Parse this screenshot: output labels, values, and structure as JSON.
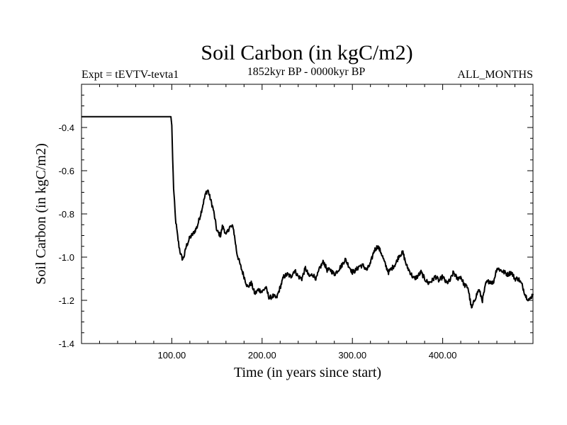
{
  "chart_data": {
    "type": "line",
    "title": "Soil Carbon (in kgC/m2)",
    "left_label": "Expt = tEVTV-tevta1",
    "center_label": "1852kyr BP - 0000kyr BP",
    "right_label": "ALL_MONTHS",
    "xlabel": "Time (in years since start)",
    "ylabel": "Soil Carbon (in kgC/m2)",
    "xlim": [
      0,
      500
    ],
    "ylim": [
      -1.4,
      -0.2
    ],
    "xticks": [
      100,
      200,
      300,
      400
    ],
    "xtick_labels": [
      "100.00",
      "200.00",
      "300.00",
      "400.00"
    ],
    "yticks": [
      -1.4,
      -1.2,
      -1.0,
      -0.8,
      -0.6,
      -0.4
    ],
    "ytick_labels": [
      "-1.4",
      "-1.2",
      "-1.0",
      "-0.8",
      "-0.6",
      "-0.4"
    ],
    "series": [
      {
        "name": "Soil Carbon",
        "color": "#000000",
        "x": [
          0,
          50,
          99,
          100,
          101,
          102,
          104,
          106,
          108,
          110,
          112,
          114,
          116,
          120,
          124,
          128,
          132,
          136,
          138,
          140,
          142,
          146,
          150,
          154,
          156,
          158,
          160,
          164,
          168,
          172,
          176,
          180,
          184,
          188,
          192,
          196,
          200,
          204,
          208,
          212,
          216,
          220,
          224,
          228,
          232,
          236,
          240,
          244,
          248,
          252,
          256,
          260,
          264,
          268,
          272,
          276,
          280,
          284,
          288,
          292,
          296,
          300,
          304,
          308,
          312,
          316,
          320,
          324,
          328,
          332,
          336,
          340,
          344,
          348,
          352,
          356,
          360,
          364,
          368,
          372,
          376,
          380,
          384,
          388,
          392,
          396,
          400,
          404,
          408,
          412,
          416,
          420,
          424,
          428,
          432,
          436,
          440,
          444,
          448,
          452,
          456,
          460,
          464,
          468,
          472,
          476,
          480,
          484,
          488,
          492,
          496,
          500
        ],
        "values": [
          -0.35,
          -0.35,
          -0.35,
          -0.39,
          -0.55,
          -0.68,
          -0.82,
          -0.89,
          -0.95,
          -0.99,
          -1.01,
          -0.99,
          -0.95,
          -0.91,
          -0.89,
          -0.86,
          -0.8,
          -0.73,
          -0.7,
          -0.69,
          -0.72,
          -0.78,
          -0.88,
          -0.9,
          -0.86,
          -0.87,
          -0.9,
          -0.86,
          -0.86,
          -0.98,
          -1.04,
          -1.09,
          -1.14,
          -1.12,
          -1.17,
          -1.15,
          -1.16,
          -1.14,
          -1.19,
          -1.18,
          -1.19,
          -1.14,
          -1.09,
          -1.08,
          -1.09,
          -1.06,
          -1.09,
          -1.1,
          -1.05,
          -1.09,
          -1.08,
          -1.1,
          -1.05,
          -1.02,
          -1.06,
          -1.06,
          -1.08,
          -1.06,
          -1.04,
          -1.01,
          -1.04,
          -1.07,
          -1.06,
          -1.04,
          -1.04,
          -1.06,
          -1.03,
          -0.97,
          -0.95,
          -0.98,
          -1.03,
          -1.07,
          -1.05,
          -1.03,
          -0.99,
          -0.98,
          -1.04,
          -1.07,
          -1.1,
          -1.09,
          -1.07,
          -1.1,
          -1.12,
          -1.11,
          -1.09,
          -1.11,
          -1.09,
          -1.12,
          -1.11,
          -1.07,
          -1.1,
          -1.09,
          -1.13,
          -1.14,
          -1.24,
          -1.19,
          -1.15,
          -1.2,
          -1.12,
          -1.11,
          -1.12,
          -1.05,
          -1.06,
          -1.07,
          -1.08,
          -1.07,
          -1.1,
          -1.1,
          -1.13,
          -1.18,
          -1.2,
          -1.17
        ]
      }
    ]
  }
}
